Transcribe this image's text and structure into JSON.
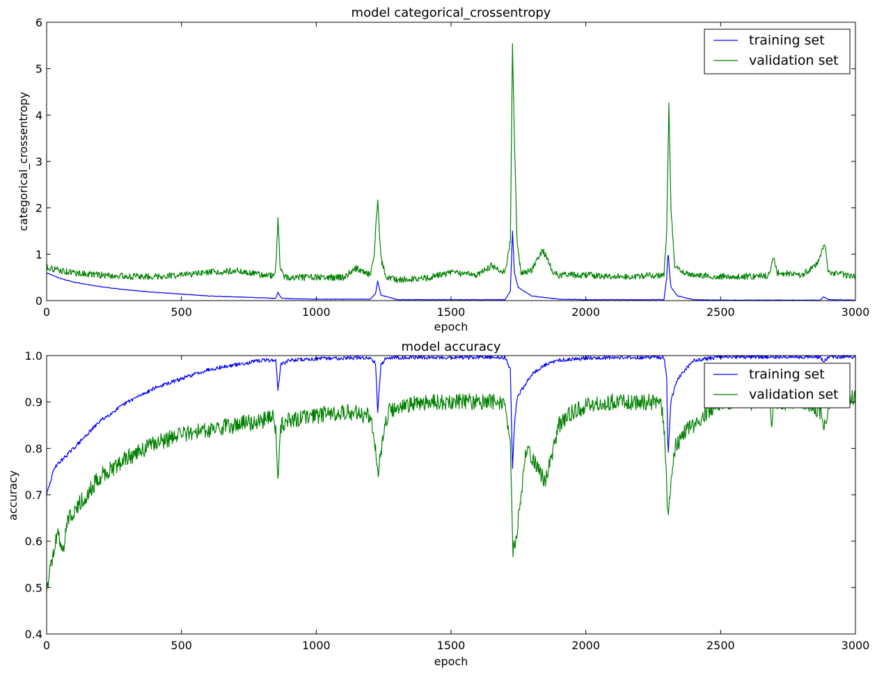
{
  "colors": {
    "training": "#0000ff",
    "validation": "#008000",
    "axes": "#000000",
    "background": "#ffffff"
  },
  "chart_data": [
    {
      "type": "line",
      "title": "model categorical_crossentropy",
      "xlabel": "epoch",
      "ylabel": "categorical_crossentropy",
      "xlim": [
        0,
        3000
      ],
      "ylim": [
        0,
        6
      ],
      "xticks": [
        "0",
        "500",
        "1000",
        "1500",
        "2000",
        "2500",
        "3000"
      ],
      "yticks": [
        "0",
        "1",
        "2",
        "3",
        "4",
        "5",
        "6"
      ],
      "grid": false,
      "legend_position": "top-right",
      "series": [
        {
          "name": "training set",
          "color": "#0000ff",
          "noise": 0.006,
          "x": [
            0,
            50,
            100,
            200,
            300,
            400,
            500,
            600,
            700,
            800,
            850,
            858,
            870,
            900,
            1000,
            1100,
            1200,
            1220,
            1228,
            1240,
            1300,
            1400,
            1500,
            1600,
            1700,
            1720,
            1728,
            1735,
            1750,
            1800,
            1900,
            2000,
            2100,
            2200,
            2290,
            2300,
            2305,
            2315,
            2340,
            2400,
            2500,
            2600,
            2700,
            2800,
            2870,
            2880,
            2890,
            2900,
            3000
          ],
          "y": [
            0.6,
            0.48,
            0.4,
            0.3,
            0.23,
            0.18,
            0.14,
            0.1,
            0.08,
            0.06,
            0.05,
            0.18,
            0.06,
            0.04,
            0.03,
            0.03,
            0.03,
            0.15,
            0.42,
            0.12,
            0.02,
            0.02,
            0.02,
            0.02,
            0.02,
            0.2,
            1.5,
            0.6,
            0.28,
            0.1,
            0.03,
            0.02,
            0.02,
            0.02,
            0.02,
            0.5,
            1.05,
            0.3,
            0.1,
            0.02,
            0.01,
            0.01,
            0.01,
            0.01,
            0.01,
            0.08,
            0.06,
            0.02,
            0.01
          ]
        },
        {
          "name": "validation set",
          "color": "#008000",
          "noise": 0.07,
          "x": [
            0,
            50,
            100,
            200,
            300,
            400,
            500,
            600,
            700,
            800,
            840,
            850,
            858,
            866,
            880,
            900,
            1000,
            1100,
            1150,
            1200,
            1215,
            1228,
            1240,
            1260,
            1300,
            1400,
            1500,
            1600,
            1650,
            1700,
            1720,
            1728,
            1735,
            1745,
            1760,
            1800,
            1840,
            1880,
            1900,
            2000,
            2100,
            2200,
            2250,
            2290,
            2300,
            2308,
            2316,
            2330,
            2400,
            2500,
            2600,
            2680,
            2695,
            2710,
            2800,
            2860,
            2885,
            2900,
            3000
          ],
          "y": [
            0.72,
            0.65,
            0.6,
            0.55,
            0.52,
            0.52,
            0.55,
            0.6,
            0.65,
            0.55,
            0.55,
            0.7,
            1.75,
            0.7,
            0.52,
            0.5,
            0.5,
            0.5,
            0.7,
            0.55,
            1.0,
            2.2,
            0.9,
            0.5,
            0.45,
            0.48,
            0.6,
            0.55,
            0.75,
            0.6,
            1.3,
            5.5,
            3.5,
            1.2,
            0.6,
            0.65,
            1.1,
            0.6,
            0.55,
            0.55,
            0.52,
            0.52,
            0.55,
            0.55,
            1.5,
            4.2,
            2.0,
            0.7,
            0.55,
            0.52,
            0.52,
            0.55,
            0.95,
            0.6,
            0.55,
            0.8,
            1.25,
            0.6,
            0.52
          ]
        }
      ]
    },
    {
      "type": "line",
      "title": "model accuracy",
      "xlabel": "epoch",
      "ylabel": "accuracy",
      "xlim": [
        0,
        3000
      ],
      "ylim": [
        0.4,
        1.0
      ],
      "xticks": [
        "0",
        "500",
        "1000",
        "1500",
        "2000",
        "2500",
        "3000"
      ],
      "yticks": [
        "0.4",
        "0.5",
        "0.6",
        "0.7",
        "0.8",
        "0.9",
        "1.0"
      ],
      "grid": false,
      "legend_position": "top-right",
      "series": [
        {
          "name": "training set",
          "color": "#0000ff",
          "noise": 0.004,
          "x": [
            0,
            30,
            100,
            200,
            300,
            400,
            500,
            600,
            700,
            800,
            850,
            858,
            868,
            900,
            1000,
            1100,
            1200,
            1220,
            1228,
            1240,
            1260,
            1300,
            1400,
            1500,
            1600,
            1700,
            1720,
            1728,
            1735,
            1745,
            1800,
            1850,
            1900,
            2000,
            2100,
            2200,
            2290,
            2300,
            2305,
            2315,
            2340,
            2400,
            2500,
            2600,
            2700,
            2800,
            2870,
            2880,
            2900,
            3000
          ],
          "y": [
            0.7,
            0.76,
            0.8,
            0.86,
            0.9,
            0.93,
            0.95,
            0.97,
            0.98,
            0.99,
            0.99,
            0.925,
            0.98,
            0.99,
            0.993,
            0.995,
            0.995,
            0.985,
            0.88,
            0.98,
            0.995,
            0.996,
            0.996,
            0.996,
            0.996,
            0.996,
            0.97,
            0.76,
            0.85,
            0.91,
            0.96,
            0.98,
            0.99,
            0.995,
            0.996,
            0.996,
            0.996,
            0.95,
            0.78,
            0.9,
            0.95,
            0.99,
            0.997,
            0.997,
            0.997,
            0.997,
            0.997,
            0.985,
            0.997,
            0.997
          ]
        },
        {
          "name": "validation set",
          "color": "#008000",
          "noise": 0.018,
          "x": [
            0,
            20,
            40,
            60,
            80,
            120,
            200,
            300,
            400,
            500,
            600,
            700,
            800,
            840,
            850,
            858,
            868,
            900,
            1000,
            1100,
            1200,
            1215,
            1230,
            1245,
            1270,
            1300,
            1400,
            1500,
            1600,
            1700,
            1720,
            1730,
            1740,
            1760,
            1780,
            1800,
            1830,
            1850,
            1880,
            1900,
            1950,
            2000,
            2100,
            2200,
            2280,
            2295,
            2305,
            2315,
            2330,
            2360,
            2400,
            2450,
            2500,
            2600,
            2680,
            2690,
            2700,
            2800,
            2870,
            2885,
            2900,
            3000
          ],
          "y": [
            0.5,
            0.56,
            0.62,
            0.58,
            0.65,
            0.68,
            0.74,
            0.78,
            0.81,
            0.83,
            0.84,
            0.85,
            0.86,
            0.87,
            0.84,
            0.73,
            0.85,
            0.86,
            0.87,
            0.88,
            0.87,
            0.82,
            0.74,
            0.82,
            0.88,
            0.89,
            0.9,
            0.9,
            0.9,
            0.9,
            0.8,
            0.58,
            0.6,
            0.7,
            0.8,
            0.78,
            0.75,
            0.73,
            0.8,
            0.85,
            0.88,
            0.89,
            0.9,
            0.9,
            0.9,
            0.8,
            0.64,
            0.72,
            0.8,
            0.83,
            0.85,
            0.88,
            0.9,
            0.9,
            0.9,
            0.86,
            0.9,
            0.9,
            0.88,
            0.84,
            0.9,
            0.91
          ]
        }
      ]
    }
  ]
}
